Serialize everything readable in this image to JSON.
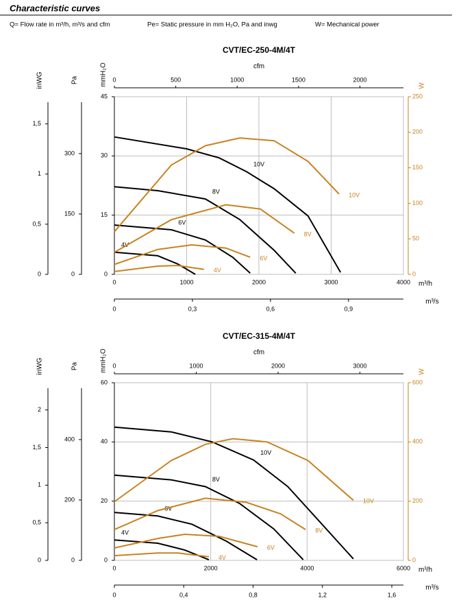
{
  "header": {
    "title": "Characteristic curves",
    "legend": [
      "Q= Flow rate in m³/h, m³/s and cfm",
      "Pe= Static pressure in mm H₂O, Pa and inwg",
      "W= Mechanical power"
    ]
  },
  "chart_data": [
    {
      "type": "line",
      "title": "CVT/EC-250-4M/4T",
      "grid": true,
      "xlabel": "m³/h",
      "xlim": [
        0,
        4000
      ],
      "xticks": [
        0,
        1000,
        2000,
        3000,
        4000
      ],
      "ylabel": "mmH₂O",
      "ylim": [
        0,
        45
      ],
      "yticks": [
        0,
        15,
        30,
        45
      ],
      "y2label": "W",
      "y2lim": [
        0,
        250
      ],
      "y2ticks": [
        0,
        50,
        100,
        150,
        200,
        250
      ],
      "y2color": "#c8821e",
      "left_axes": [
        {
          "label": "inWG",
          "lim": [
            0,
            1.771
          ],
          "ticks": [
            0,
            {
              "value": 0.5,
              "label": "0,5"
            },
            1,
            {
              "value": 1.5,
              "label": "1,5"
            }
          ]
        },
        {
          "label": "Pa",
          "lim": [
            0,
            441.3
          ],
          "ticks": [
            0,
            150,
            300
          ]
        }
      ],
      "top_axis": {
        "label": "cfm",
        "lim": [
          0,
          2354
        ],
        "ticks": [
          0,
          500,
          1000,
          1500,
          2000
        ]
      },
      "bottom_axis": {
        "label": "m³/s",
        "lim": [
          0,
          1.111
        ],
        "ticks": [
          0,
          {
            "value": 0.3,
            "label": "0,3"
          },
          {
            "value": 0.6,
            "label": "0,6"
          },
          {
            "value": 0.9,
            "label": "0,9"
          }
        ]
      },
      "series": [
        {
          "name": "10V",
          "color": "#000000",
          "x": [
            0,
            1000,
            1450,
            1830,
            2210,
            2680,
            3130
          ],
          "values": [
            34.8,
            31.8,
            29.5,
            26,
            21.7,
            14.8,
            0.5
          ]
        },
        {
          "name": "8V",
          "color": "#000000",
          "x": [
            0,
            600,
            1260,
            1735,
            2210,
            2510
          ],
          "values": [
            22.2,
            21.2,
            19.1,
            13.9,
            6.1,
            0.3
          ]
        },
        {
          "name": "6V",
          "color": "#000000",
          "x": [
            0,
            790,
            1260,
            1640,
            1880
          ],
          "values": [
            12.5,
            11.3,
            8.7,
            4.3,
            0.3
          ]
        },
        {
          "name": "4V",
          "color": "#000000",
          "x": [
            0,
            600,
            880,
            1120
          ],
          "values": [
            5.6,
            4.7,
            2.6,
            0
          ]
        },
        {
          "name": "10V",
          "color": "#c8821e",
          "axis": "y2",
          "x": [
            0,
            790,
            1260,
            1735,
            2210,
            2680,
            3110
          ],
          "values": [
            60,
            154,
            181,
            192,
            188,
            159,
            113
          ]
        },
        {
          "name": "8V",
          "color": "#c8821e",
          "axis": "y2",
          "x": [
            0,
            790,
            1545,
            2020,
            2490
          ],
          "values": [
            31,
            77,
            98,
            92,
            58
          ]
        },
        {
          "name": "6V",
          "color": "#c8821e",
          "axis": "y2",
          "x": [
            0,
            600,
            1070,
            1545,
            1880
          ],
          "values": [
            14,
            35,
            41.5,
            37,
            24
          ]
        },
        {
          "name": "4V",
          "color": "#c8821e",
          "axis": "y2",
          "x": [
            0,
            600,
            880,
            1240
          ],
          "values": [
            4,
            11.6,
            12.5,
            7
          ]
        }
      ]
    },
    {
      "type": "line",
      "title": "CVT/EC-315-4M/4T",
      "grid": true,
      "xlabel": "m³/h",
      "xlim": [
        0,
        6000
      ],
      "xticks": [
        0,
        2000,
        4000,
        6000
      ],
      "ylabel": "mmH₂O",
      "ylim": [
        0,
        60
      ],
      "yticks": [
        0,
        20,
        40,
        60
      ],
      "y2label": "W",
      "y2lim": [
        0,
        600
      ],
      "y2ticks": [
        0,
        200,
        400,
        600
      ],
      "y2color": "#c8821e",
      "left_axes": [
        {
          "label": "inWG",
          "lim": [
            0,
            2.362
          ],
          "ticks": [
            0,
            {
              "value": 0.5,
              "label": "0,5"
            },
            1,
            {
              "value": 1.5,
              "label": "1,5"
            },
            2
          ]
        },
        {
          "label": "Pa",
          "lim": [
            0,
            588.4
          ],
          "ticks": [
            0,
            200,
            400
          ]
        }
      ],
      "top_axis": {
        "label": "cfm",
        "lim": [
          0,
          3531
        ],
        "ticks": [
          0,
          1000,
          2000,
          3000
        ]
      },
      "bottom_axis": {
        "label": "m³/s",
        "lim": [
          0,
          1.667
        ],
        "ticks": [
          0,
          {
            "value": 0.4,
            "label": "0,4"
          },
          {
            "value": 0.8,
            "label": "0,8"
          },
          {
            "value": 1.2,
            "label": "1,2"
          },
          {
            "value": 1.6,
            "label": "1,6"
          }
        ]
      },
      "series": [
        {
          "name": "10V",
          "color": "#000000",
          "x": [
            0,
            1180,
            2030,
            2890,
            3600,
            4310,
            4960
          ],
          "values": [
            45,
            43.4,
            40,
            33.9,
            24.9,
            12.2,
            0.5
          ]
        },
        {
          "name": "8V",
          "color": "#000000",
          "x": [
            0,
            1180,
            1890,
            2600,
            3310,
            3920
          ],
          "values": [
            28.8,
            27.2,
            24.9,
            19.2,
            10.6,
            0.2
          ]
        },
        {
          "name": "6V",
          "color": "#000000",
          "x": [
            0,
            900,
            1610,
            2320,
            2960
          ],
          "values": [
            16.2,
            15,
            12.2,
            6.5,
            0.2
          ]
        },
        {
          "name": "4V",
          "color": "#000000",
          "x": [
            0,
            900,
            1460,
            1960
          ],
          "values": [
            6.9,
            5.8,
            3.5,
            0.2
          ]
        },
        {
          "name": "10V",
          "color": "#c8821e",
          "axis": "y2",
          "x": [
            0,
            1180,
            1890,
            2460,
            3170,
            4020,
            4960
          ],
          "values": [
            198,
            337,
            392,
            411,
            400,
            337,
            203
          ]
        },
        {
          "name": "8V",
          "color": "#c8821e",
          "axis": "y2",
          "x": [
            0,
            900,
            1890,
            2740,
            3450,
            3970
          ],
          "values": [
            104,
            168,
            210,
            196,
            157,
            104
          ]
        },
        {
          "name": "6V",
          "color": "#c8821e",
          "axis": "y2",
          "x": [
            0,
            900,
            1460,
            2180,
            2970
          ],
          "values": [
            42,
            74,
            88,
            81,
            46
          ]
        },
        {
          "name": "4V",
          "color": "#c8821e",
          "axis": "y2",
          "x": [
            0,
            900,
            1320,
            1960
          ],
          "values": [
            16,
            25,
            25,
            12
          ]
        }
      ]
    }
  ]
}
